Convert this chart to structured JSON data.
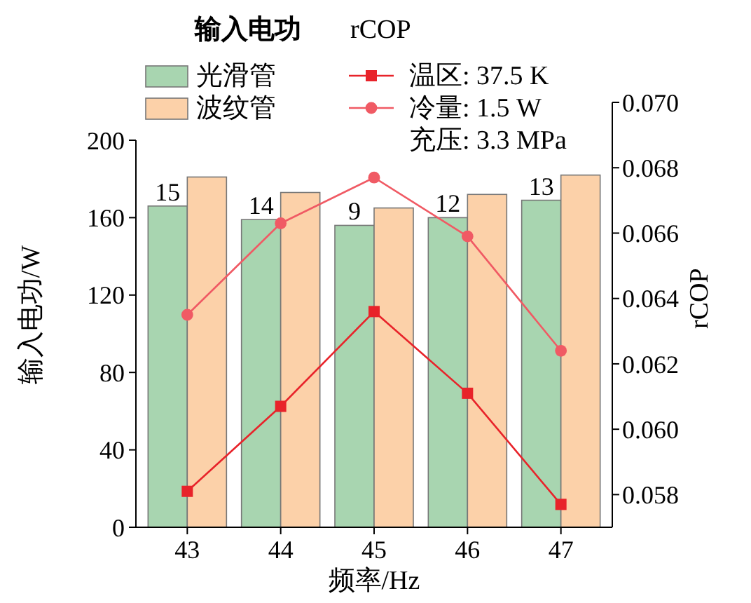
{
  "chart_data": {
    "type": "bar",
    "categories": [
      "43",
      "44",
      "45",
      "46",
      "47"
    ],
    "xlabel": "频率/Hz",
    "ylabel": "输入电功/W",
    "y2label": "rCOP",
    "legend": "top",
    "series": [
      {
        "name": "光滑管",
        "color": "#a8d5b0",
        "values": [
          166,
          159,
          156,
          160,
          169
        ]
      },
      {
        "name": "波纹管",
        "color": "#fcd1a9",
        "values": [
          181,
          173,
          165,
          172,
          182
        ]
      },
      {
        "name": "温区: 37.5 K",
        "type": "line",
        "axis": "y2",
        "color": "#e8232a",
        "marker": "square",
        "line_style": "solid",
        "values": [
          0.0581,
          0.0607,
          0.0636,
          0.0611,
          0.0577
        ]
      },
      {
        "name": "冷量: 1.5 W",
        "type": "line",
        "axis": "y2",
        "color": "#f05a64",
        "marker": "circle",
        "line_style": "solid",
        "values": [
          0.0635,
          0.0663,
          0.0677,
          0.0659,
          0.0624
        ]
      }
    ],
    "ylim": [
      0,
      200
    ],
    "yticks": [
      0,
      40,
      80,
      120,
      160,
      200
    ],
    "y2lim": [
      0.057,
      0.07
    ],
    "y2ticks": [
      {
        "value": 0.058,
        "label": "0.058"
      },
      {
        "value": 0.06,
        "label": "0.060"
      },
      {
        "value": 0.062,
        "label": "0.062"
      },
      {
        "value": 0.064,
        "label": "0.064"
      },
      {
        "value": 0.066,
        "label": "0.066"
      },
      {
        "value": 0.068,
        "label": "0.068"
      },
      {
        "value": 0.07,
        "label": "0.070"
      }
    ],
    "annotations": [
      "输入电功",
      "rCOP",
      "充压: 3.3 MPa",
      {
        "text": "15",
        "x": "43",
        "y": 166
      },
      {
        "text": "14",
        "x": "44",
        "y": 159
      },
      {
        "text": "9",
        "x": "45",
        "y": 156
      },
      {
        "text": "12",
        "x": "46",
        "y": 160
      },
      {
        "text": "13",
        "x": "47",
        "y": 169
      }
    ]
  }
}
